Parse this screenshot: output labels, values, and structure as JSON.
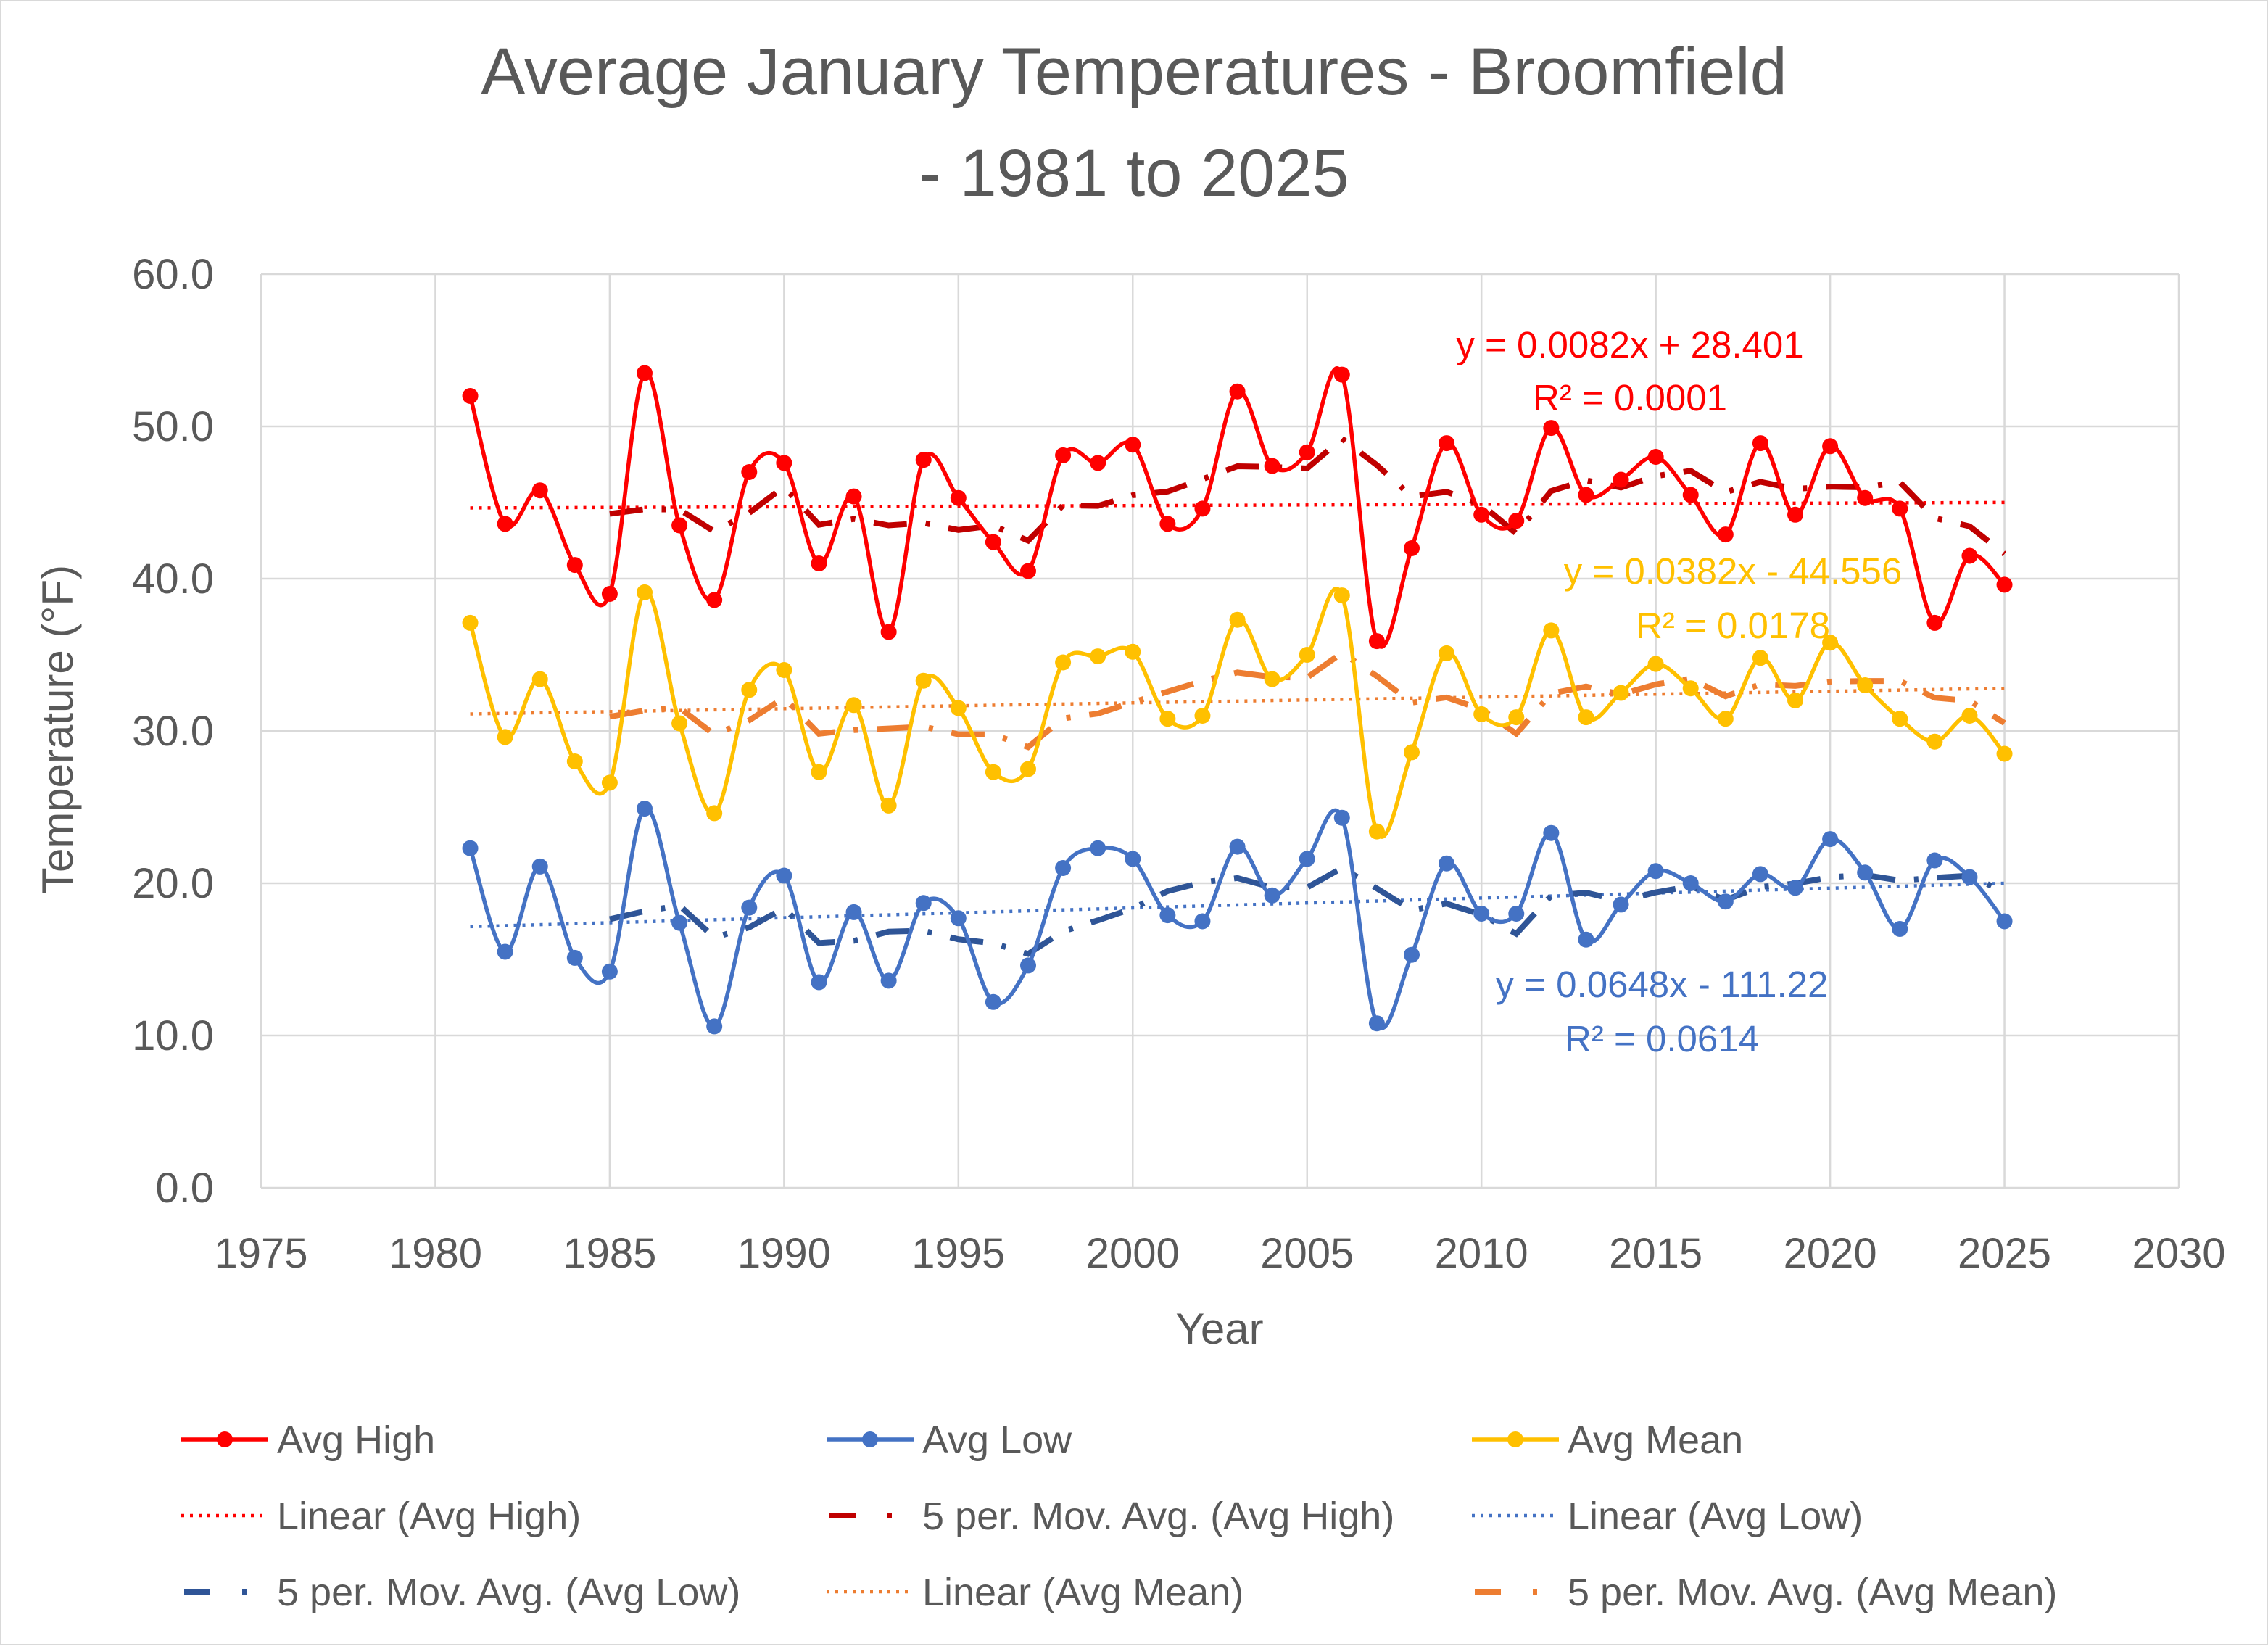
{
  "chart_data": {
    "type": "line",
    "title_lines": [
      "Average January Temperatures - Broomfield",
      "- 1981 to 2025"
    ],
    "xlabel": "Year",
    "ylabel": "Temperature (°F)",
    "xlim": [
      1975,
      2030
    ],
    "ylim": [
      0,
      60
    ],
    "x_ticks": [
      1975,
      1980,
      1985,
      1990,
      1995,
      2000,
      2005,
      2010,
      2015,
      2020,
      2025,
      2030
    ],
    "x_tick_labels": [
      "1975",
      "1980",
      "1985",
      "1990",
      "1995",
      "2000",
      "2005",
      "2010",
      "2015",
      "2020",
      "2025",
      "2030"
    ],
    "y_ticks": [
      0,
      10,
      20,
      30,
      40,
      50,
      60
    ],
    "y_tick_labels": [
      "0.0",
      "10.0",
      "20.0",
      "30.0",
      "40.0",
      "50.0",
      "60.0"
    ],
    "grid": true,
    "x": [
      1981,
      1982,
      1983,
      1984,
      1985,
      1986,
      1987,
      1988,
      1989,
      1990,
      1991,
      1992,
      1993,
      1994,
      1995,
      1996,
      1997,
      1998,
      1999,
      2000,
      2001,
      2002,
      2003,
      2004,
      2005,
      2006,
      2007,
      2008,
      2009,
      2010,
      2011,
      2012,
      2013,
      2014,
      2015,
      2016,
      2017,
      2018,
      2019,
      2020,
      2021,
      2022,
      2023,
      2024,
      2025
    ],
    "series": [
      {
        "key": "high",
        "name": "Avg High",
        "color": "#ff0000",
        "values": [
          52.0,
          43.6,
          45.8,
          40.9,
          39.0,
          53.5,
          43.5,
          38.6,
          47.0,
          47.6,
          41.0,
          45.4,
          36.5,
          47.8,
          45.3,
          42.4,
          40.5,
          48.1,
          47.6,
          48.8,
          43.6,
          44.6,
          52.3,
          47.4,
          48.3,
          53.4,
          35.9,
          42.0,
          48.9,
          44.2,
          43.8,
          49.9,
          45.5,
          46.5,
          48.0,
          45.5,
          42.9,
          48.9,
          44.2,
          48.7,
          45.3,
          44.6,
          37.1,
          41.5,
          39.6
        ]
      },
      {
        "key": "low",
        "name": "Avg Low",
        "color": "#4472c4",
        "values": [
          22.3,
          15.5,
          21.1,
          15.1,
          14.2,
          24.9,
          17.4,
          10.6,
          18.4,
          20.5,
          13.5,
          18.1,
          13.6,
          18.7,
          17.7,
          12.2,
          14.6,
          21.0,
          22.3,
          21.6,
          17.9,
          17.5,
          22.4,
          19.2,
          21.6,
          24.3,
          10.8,
          15.3,
          21.3,
          18.0,
          18.0,
          23.3,
          16.3,
          18.6,
          20.8,
          20.0,
          18.8,
          20.6,
          19.7,
          22.9,
          20.7,
          17.0,
          21.5,
          20.4,
          17.5
        ]
      },
      {
        "key": "mean",
        "name": "Avg Mean",
        "color": "#ffc000",
        "values": [
          37.1,
          29.6,
          33.4,
          28.0,
          26.6,
          39.1,
          30.5,
          24.6,
          32.7,
          34.0,
          27.3,
          31.7,
          25.1,
          33.3,
          31.5,
          27.3,
          27.5,
          34.5,
          34.9,
          35.2,
          30.8,
          31.0,
          37.3,
          33.4,
          35.0,
          38.9,
          23.4,
          28.6,
          35.1,
          31.1,
          30.9,
          36.6,
          30.9,
          32.5,
          34.4,
          32.8,
          30.8,
          34.8,
          32.0,
          35.8,
          33.0,
          30.8,
          29.3,
          31.0,
          28.5
        ]
      }
    ],
    "trendlines": [
      {
        "key": "high",
        "name": "Linear (Avg High)",
        "type": "linear",
        "slope": 0.0082,
        "intercept": 28.401,
        "color": "#ff0000",
        "equation": "y = 0.0082x + 28.401",
        "r2": "R² = 0.0001"
      },
      {
        "key": "low",
        "name": "Linear (Avg Low)",
        "type": "linear",
        "slope": 0.0648,
        "intercept": -111.22,
        "color": "#4472c4",
        "equation": "y = 0.0648x - 111.22",
        "r2": "R² = 0.0614"
      },
      {
        "key": "mean",
        "name": "Linear (Avg Mean)",
        "type": "linear",
        "slope": 0.0382,
        "intercept": -44.556,
        "color": "#ed7d31",
        "equation": "y = 0.0382x - 44.556",
        "r2": "R² = 0.0178"
      }
    ],
    "moving_averages": [
      {
        "key": "high",
        "name": "5 per. Mov. Avg. (Avg High)",
        "period": 5,
        "color": "#c00000"
      },
      {
        "key": "low",
        "name": "5 per. Mov. Avg. (Avg Low)",
        "period": 5,
        "color": "#2f5597"
      },
      {
        "key": "mean",
        "name": "5 per. Mov. Avg. (Avg Mean)",
        "period": 5,
        "color": "#ed7d31"
      }
    ],
    "legend": {
      "position": "bottom",
      "entries": [
        {
          "label": "Avg High",
          "style": "line-marker",
          "color": "#ff0000"
        },
        {
          "label": "Avg Low",
          "style": "line-marker",
          "color": "#4472c4"
        },
        {
          "label": "Avg Mean",
          "style": "line-marker",
          "color": "#ffc000"
        },
        {
          "label": "Linear (Avg High)",
          "style": "dotted",
          "color": "#ff0000"
        },
        {
          "label": "5 per. Mov. Avg. (Avg High)",
          "style": "dashdot",
          "color": "#c00000"
        },
        {
          "label": "Linear (Avg Low)",
          "style": "dotted",
          "color": "#4472c4"
        },
        {
          "label": "5 per. Mov. Avg. (Avg Low)",
          "style": "dashdot",
          "color": "#2f5597"
        },
        {
          "label": "Linear (Avg Mean)",
          "style": "dotted",
          "color": "#ed7d31"
        },
        {
          "label": "5 per. Mov. Avg. (Avg Mean)",
          "style": "dashdot",
          "color": "#ed7d31"
        }
      ]
    }
  }
}
